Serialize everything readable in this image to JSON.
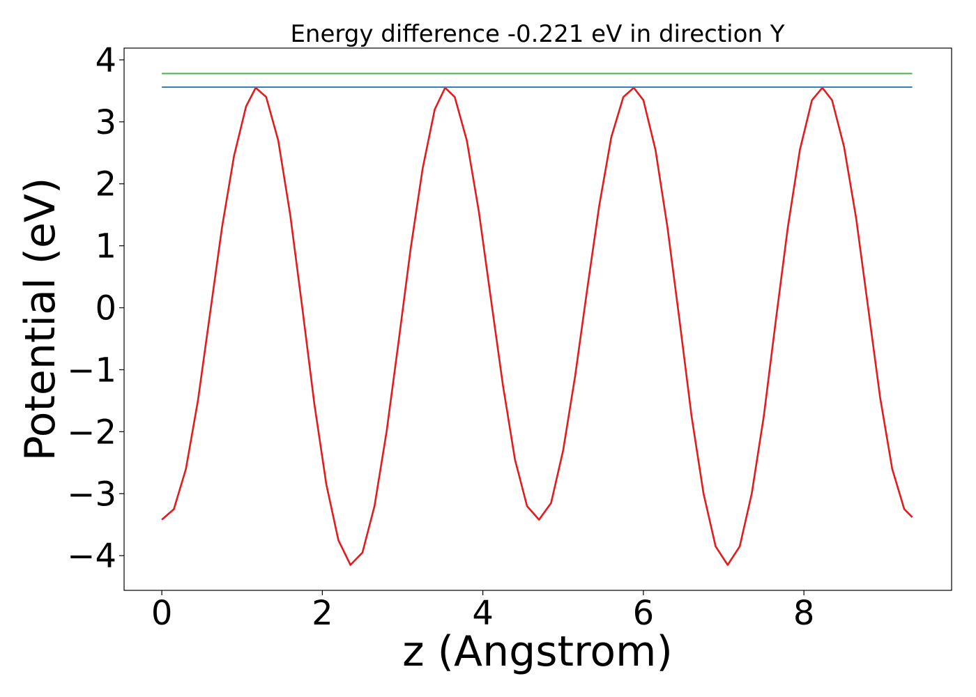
{
  "chart_data": {
    "type": "line",
    "title": "Energy difference -0.221 eV in direction Y",
    "xlabel": "z (Angstrom)",
    "ylabel": "Potential (eV)",
    "xlim": [
      -0.47,
      9.84
    ],
    "ylim": [
      -4.56,
      4.19
    ],
    "xticks": [
      0,
      2,
      4,
      6,
      8
    ],
    "xtick_labels": [
      "0",
      "2",
      "4",
      "6",
      "8"
    ],
    "yticks": [
      4,
      3,
      2,
      1,
      0,
      -1,
      -2,
      -3,
      -4
    ],
    "ytick_labels": [
      "4",
      "3",
      "2",
      "1",
      "0",
      "−1",
      "−2",
      "−3",
      "−4"
    ],
    "grid": false,
    "series": [
      {
        "color": "#e41a1c",
        "points": [
          [
            0.0,
            -3.42
          ],
          [
            0.15,
            -3.25
          ],
          [
            0.3,
            -2.6
          ],
          [
            0.45,
            -1.5
          ],
          [
            0.6,
            -0.1
          ],
          [
            0.75,
            1.3
          ],
          [
            0.9,
            2.45
          ],
          [
            1.05,
            3.25
          ],
          [
            1.17,
            3.55
          ],
          [
            1.3,
            3.4
          ],
          [
            1.45,
            2.7
          ],
          [
            1.6,
            1.5
          ],
          [
            1.75,
            0.0
          ],
          [
            1.9,
            -1.55
          ],
          [
            2.05,
            -2.85
          ],
          [
            2.2,
            -3.75
          ],
          [
            2.35,
            -4.15
          ],
          [
            2.5,
            -3.95
          ],
          [
            2.65,
            -3.2
          ],
          [
            2.8,
            -2.0
          ],
          [
            2.95,
            -0.55
          ],
          [
            3.1,
            0.95
          ],
          [
            3.25,
            2.25
          ],
          [
            3.4,
            3.2
          ],
          [
            3.53,
            3.55
          ],
          [
            3.65,
            3.4
          ],
          [
            3.8,
            2.7
          ],
          [
            3.95,
            1.55
          ],
          [
            4.1,
            0.15
          ],
          [
            4.25,
            -1.25
          ],
          [
            4.4,
            -2.45
          ],
          [
            4.55,
            -3.2
          ],
          [
            4.7,
            -3.42
          ],
          [
            4.85,
            -3.15
          ],
          [
            5.0,
            -2.3
          ],
          [
            5.15,
            -1.1
          ],
          [
            5.3,
            0.3
          ],
          [
            5.45,
            1.65
          ],
          [
            5.6,
            2.75
          ],
          [
            5.75,
            3.4
          ],
          [
            5.88,
            3.55
          ],
          [
            6.0,
            3.35
          ],
          [
            6.15,
            2.55
          ],
          [
            6.3,
            1.3
          ],
          [
            6.45,
            -0.2
          ],
          [
            6.6,
            -1.75
          ],
          [
            6.75,
            -3.0
          ],
          [
            6.9,
            -3.85
          ],
          [
            7.05,
            -4.15
          ],
          [
            7.2,
            -3.85
          ],
          [
            7.35,
            -3.0
          ],
          [
            7.5,
            -1.75
          ],
          [
            7.65,
            -0.2
          ],
          [
            7.8,
            1.3
          ],
          [
            7.95,
            2.55
          ],
          [
            8.1,
            3.35
          ],
          [
            8.23,
            3.55
          ],
          [
            8.35,
            3.35
          ],
          [
            8.5,
            2.6
          ],
          [
            8.65,
            1.45
          ],
          [
            8.8,
            0.0
          ],
          [
            8.95,
            -1.45
          ],
          [
            9.1,
            -2.6
          ],
          [
            9.25,
            -3.25
          ],
          [
            9.35,
            -3.38
          ]
        ]
      },
      {
        "color": "#377eb8",
        "points": [
          [
            0.0,
            3.56
          ],
          [
            9.35,
            3.56
          ]
        ]
      },
      {
        "color": "#4daf4a",
        "points": [
          [
            0.0,
            3.78
          ],
          [
            9.35,
            3.78
          ]
        ]
      }
    ]
  }
}
